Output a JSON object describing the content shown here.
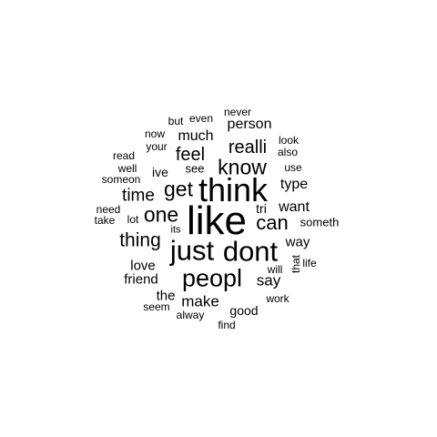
{
  "word_cloud": {
    "text_color": "#000000",
    "background": "#ffffff",
    "words": [
      {
        "text": "like",
        "orientation": "horizontal"
      },
      {
        "text": "think",
        "orientation": "horizontal"
      },
      {
        "text": "dont",
        "orientation": "horizontal"
      },
      {
        "text": "just",
        "orientation": "horizontal"
      },
      {
        "text": "peopl",
        "orientation": "horizontal"
      },
      {
        "text": "one",
        "orientation": "horizontal"
      },
      {
        "text": "know",
        "orientation": "horizontal"
      },
      {
        "text": "get",
        "orientation": "horizontal"
      },
      {
        "text": "can",
        "orientation": "horizontal"
      },
      {
        "text": "realli",
        "orientation": "horizontal"
      },
      {
        "text": "thing",
        "orientation": "horizontal"
      },
      {
        "text": "feel",
        "orientation": "horizontal"
      },
      {
        "text": "time",
        "orientation": "horizontal"
      },
      {
        "text": "say",
        "orientation": "horizontal"
      },
      {
        "text": "make",
        "orientation": "horizontal"
      },
      {
        "text": "person",
        "orientation": "horizontal"
      },
      {
        "text": "much",
        "orientation": "horizontal"
      },
      {
        "text": "want",
        "orientation": "horizontal"
      },
      {
        "text": "type",
        "orientation": "horizontal"
      },
      {
        "text": "way",
        "orientation": "horizontal"
      },
      {
        "text": "love",
        "orientation": "horizontal"
      },
      {
        "text": "friend",
        "orientation": "horizontal"
      },
      {
        "text": "the",
        "orientation": "horizontal"
      },
      {
        "text": "good",
        "orientation": "horizontal"
      },
      {
        "text": "ive",
        "orientation": "horizontal"
      },
      {
        "text": "see",
        "orientation": "horizontal"
      },
      {
        "text": "tri",
        "orientation": "horizontal"
      },
      {
        "text": "someth",
        "orientation": "horizontal"
      },
      {
        "text": "will",
        "orientation": "horizontal"
      },
      {
        "text": "work",
        "orientation": "horizontal"
      },
      {
        "text": "that",
        "orientation": "vertical"
      },
      {
        "text": "life",
        "orientation": "horizontal"
      },
      {
        "text": "use",
        "orientation": "horizontal"
      },
      {
        "text": "also",
        "orientation": "horizontal"
      },
      {
        "text": "look",
        "orientation": "horizontal"
      },
      {
        "text": "never",
        "orientation": "horizontal"
      },
      {
        "text": "even",
        "orientation": "horizontal"
      },
      {
        "text": "but",
        "orientation": "horizontal"
      },
      {
        "text": "now",
        "orientation": "horizontal"
      },
      {
        "text": "your",
        "orientation": "horizontal"
      },
      {
        "text": "read",
        "orientation": "horizontal"
      },
      {
        "text": "well",
        "orientation": "horizontal"
      },
      {
        "text": "someon",
        "orientation": "horizontal"
      },
      {
        "text": "need",
        "orientation": "horizontal"
      },
      {
        "text": "take",
        "orientation": "horizontal"
      },
      {
        "text": "lot",
        "orientation": "horizontal"
      },
      {
        "text": "its",
        "orientation": "horizontal"
      },
      {
        "text": "seem",
        "orientation": "horizontal"
      },
      {
        "text": "alway",
        "orientation": "horizontal"
      },
      {
        "text": "find",
        "orientation": "horizontal"
      }
    ]
  }
}
